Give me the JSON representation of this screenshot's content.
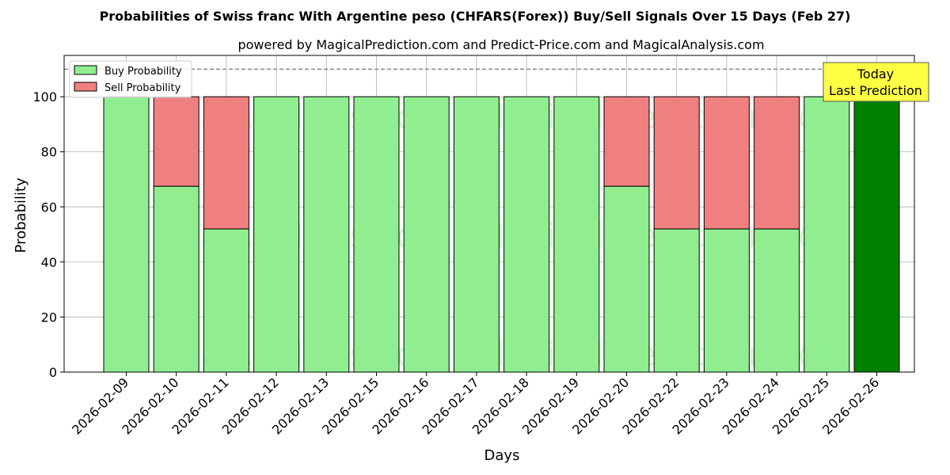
{
  "chart_data": {
    "type": "bar",
    "stacked": true,
    "title": "Probabilities of Swiss franc With Argentine peso (CHFARS(Forex)) Buy/Sell Signals Over 15 Days (Feb 27)",
    "subtitle": "powered by MagicalPrediction.com and Predict-Price.com and MagicalAnalysis.com",
    "xlabel": "Days",
    "ylabel": "Probability",
    "ylim": [
      0,
      115
    ],
    "yticks": [
      0,
      20,
      40,
      60,
      80,
      100
    ],
    "grid": true,
    "legend_position": "top-left",
    "reference_line": 110,
    "categories": [
      "2026-02-09",
      "2026-02-10",
      "2026-02-11",
      "2026-02-12",
      "2026-02-13",
      "2026-02-15",
      "2026-02-16",
      "2026-02-17",
      "2026-02-18",
      "2026-02-19",
      "2026-02-20",
      "2026-02-22",
      "2026-02-23",
      "2026-02-24",
      "2026-02-25",
      "2026-02-26"
    ],
    "series": [
      {
        "name": "Buy Probability",
        "color": "#90ee90",
        "values": [
          100,
          67.5,
          52,
          100,
          100,
          100,
          100,
          100,
          100,
          100,
          67.5,
          52,
          52,
          52,
          100,
          100
        ]
      },
      {
        "name": "Sell Probability",
        "color": "#f08080",
        "values": [
          0,
          32.5,
          48,
          0,
          0,
          0,
          0,
          0,
          0,
          0,
          32.5,
          48,
          48,
          48,
          0,
          0
        ]
      }
    ],
    "highlight": {
      "index": 15,
      "color": "#008000",
      "label_line1": "Today",
      "label_line2": "Last Prediction",
      "label_bg": "#ffff44"
    },
    "watermarks": [
      "MagicalAnalysis.com",
      "MagicalPrediction.com"
    ]
  }
}
